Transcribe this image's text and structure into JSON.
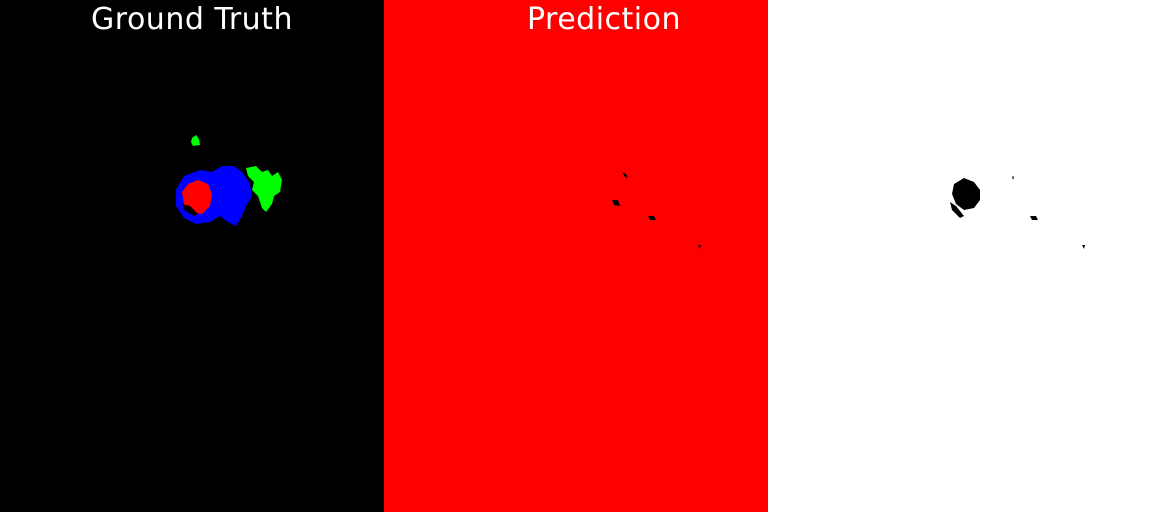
{
  "panels": [
    {
      "id": "ground_truth",
      "label": "Ground Truth",
      "background_color": "#000000",
      "region_colors": [
        "#00ff00",
        "#0000ff",
        "#ff0000"
      ]
    },
    {
      "id": "prediction",
      "label": "Prediction",
      "background_color": "#ff0000",
      "region_colors": [
        "#000000"
      ]
    },
    {
      "id": "binary_mask",
      "label": "",
      "background_color": "#ffffff",
      "region_colors": [
        "#000000"
      ]
    }
  ]
}
